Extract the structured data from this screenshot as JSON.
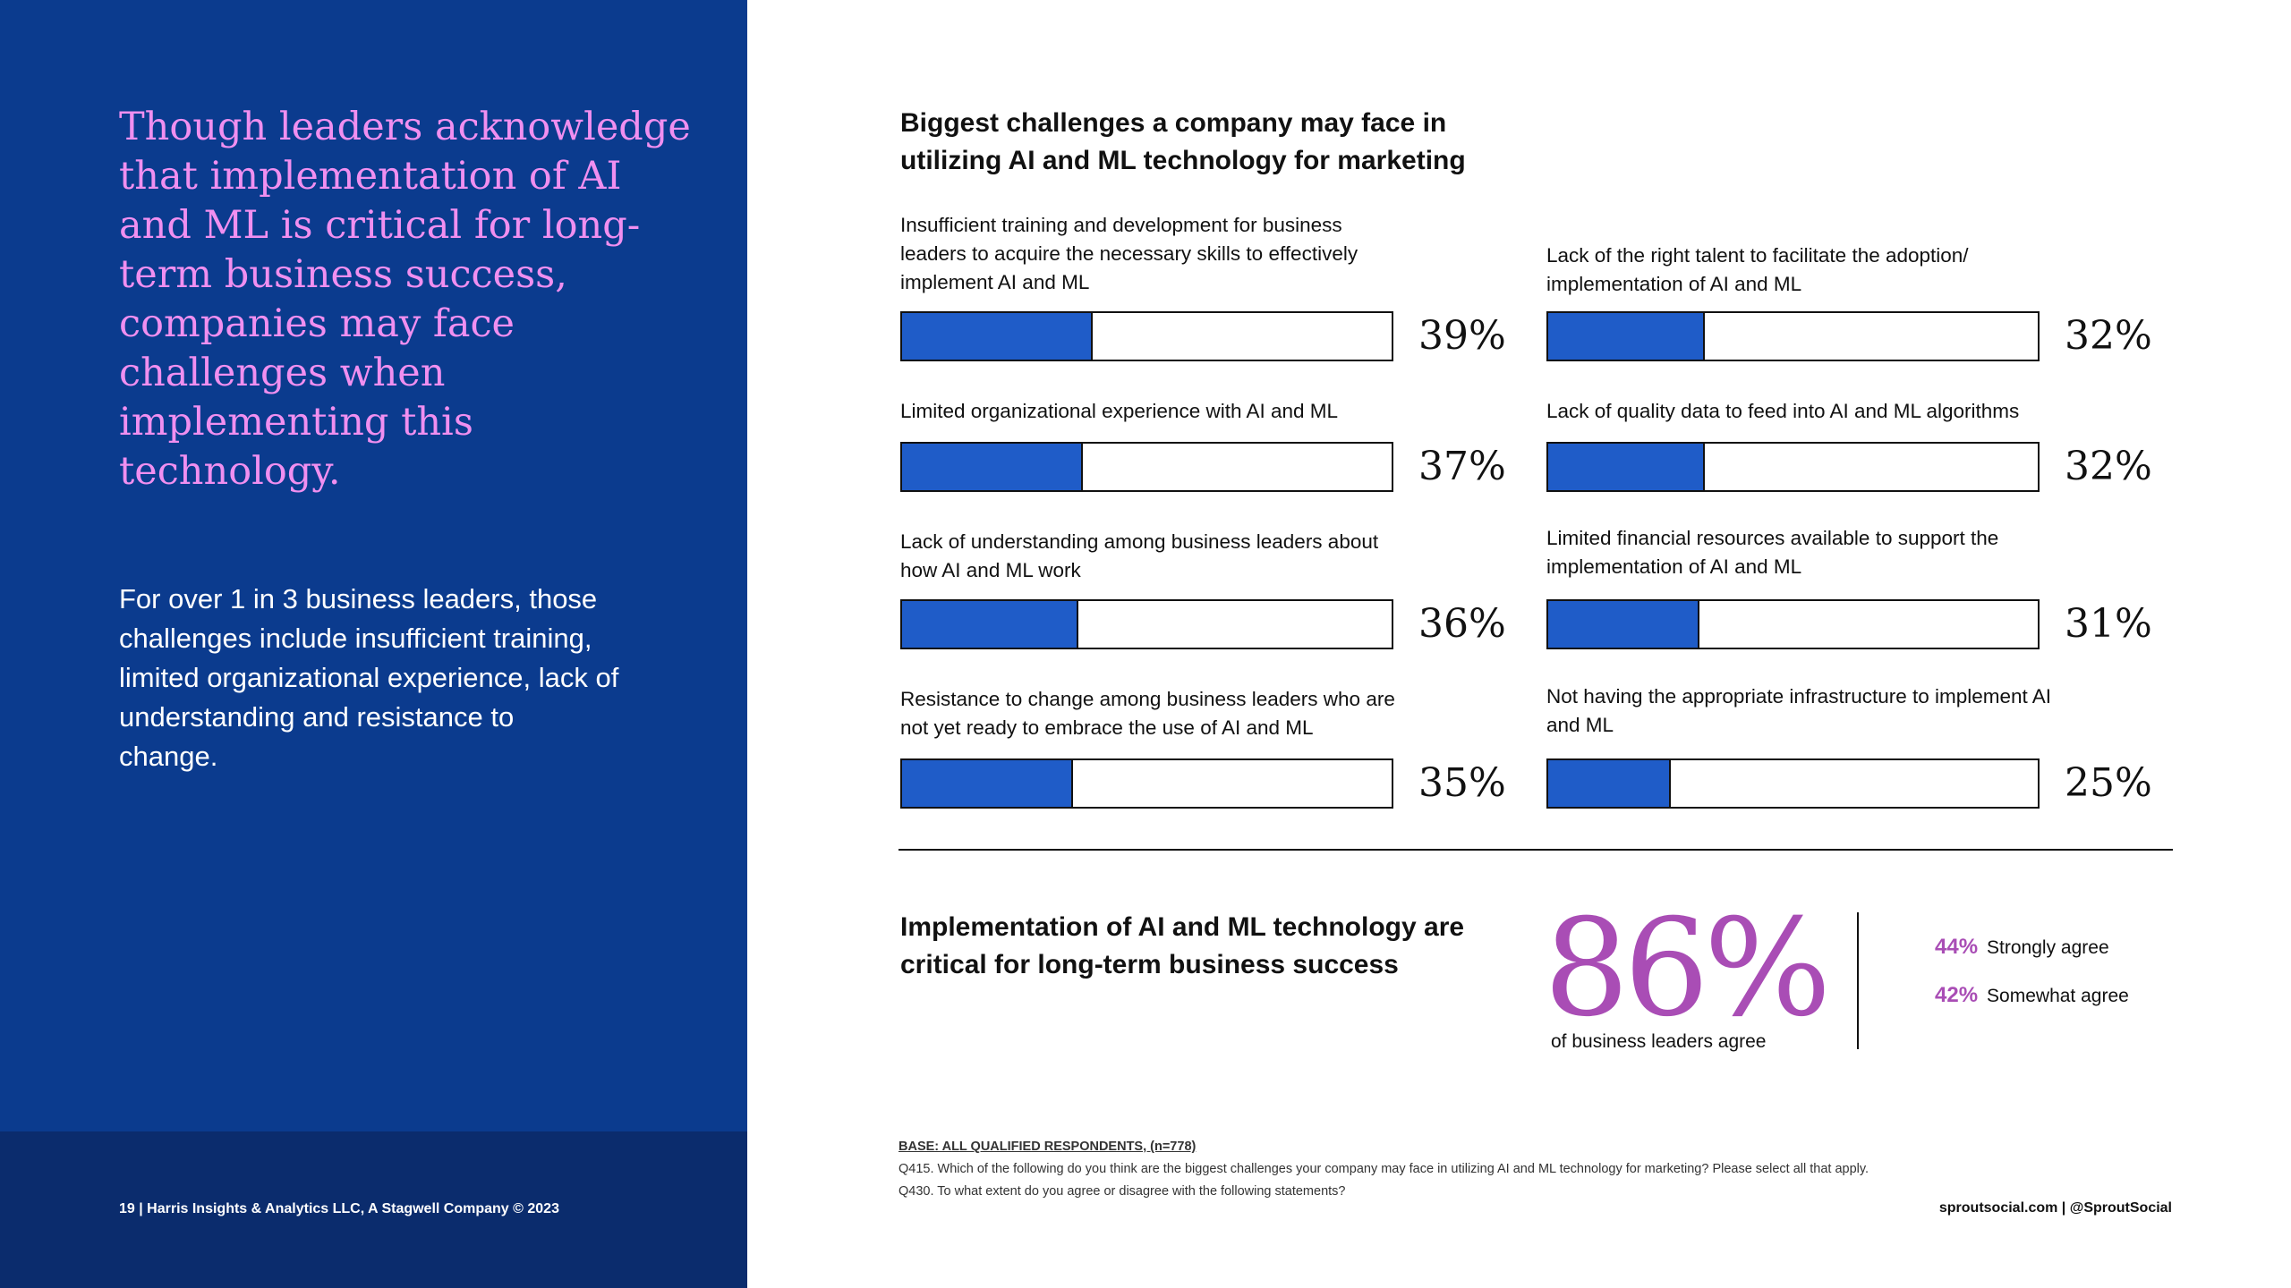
{
  "left_panel": {
    "headline": "Though leaders acknowledge that implementation of AI and ML is critical for long-term business success, companies may face challenges when implementing this technology.",
    "subtext": "For over 1 in 3 business leaders, those challenges include insufficient training, limited organizational experience, lack of understanding and resistance to change.",
    "footer": "19  |  Harris Insights & Analytics LLC, A Stagwell Company © 2023"
  },
  "chart_data": {
    "type": "bar",
    "orientation": "horizontal",
    "title": "Biggest challenges a company may face in utilizing AI and ML technology for marketing",
    "unit": "%",
    "xlim": [
      0,
      100
    ],
    "categories": [
      "Insufficient training and development for business leaders to acquire the necessary skills to effectively implement AI and ML",
      "Limited organizational experience with AI and ML",
      "Lack of understanding among business leaders about how AI and ML work",
      "Resistance to change among business leaders who are not yet ready to embrace the use of AI and ML",
      "Lack of the right talent to facilitate the adoption/ implementation of AI and ML",
      "Lack of quality data to feed into AI and ML algorithms",
      "Limited financial resources available to support the implementation of AI and ML",
      "Not having the appropriate infrastructure to implement AI and ML"
    ],
    "values": [
      39,
      37,
      36,
      35,
      32,
      32,
      31,
      25
    ],
    "value_labels": [
      "39%",
      "37%",
      "36%",
      "35%",
      "32%",
      "32%",
      "31%",
      "25%"
    ],
    "bar_color": "#1f5cc8"
  },
  "stat": {
    "heading": "Implementation of AI and ML technology are critical for long-term business success",
    "value": "86%",
    "caption": "of business leaders agree",
    "breakdown": [
      {
        "pct": "44%",
        "label": "Strongly agree"
      },
      {
        "pct": "42%",
        "label": "Somewhat agree"
      }
    ],
    "accent_color": "#a94db5"
  },
  "base_note": {
    "base": "BASE: ALL QUALIFIED RESPONDENTS, (n=778)",
    "q1": "Q415. Which of the following do you think are the biggest challenges your company may face in utilizing AI and ML technology for marketing? Please select all that apply.",
    "q2": "Q430. To what extent do you agree or disagree with the following statements?"
  },
  "brand_footer": "sproutsocial.com   |   @SproutSocial",
  "colors": {
    "left_panel_bg": "#0b3b8e",
    "left_footer_bg": "#0b2c6d",
    "headline": "#f08ff0"
  }
}
